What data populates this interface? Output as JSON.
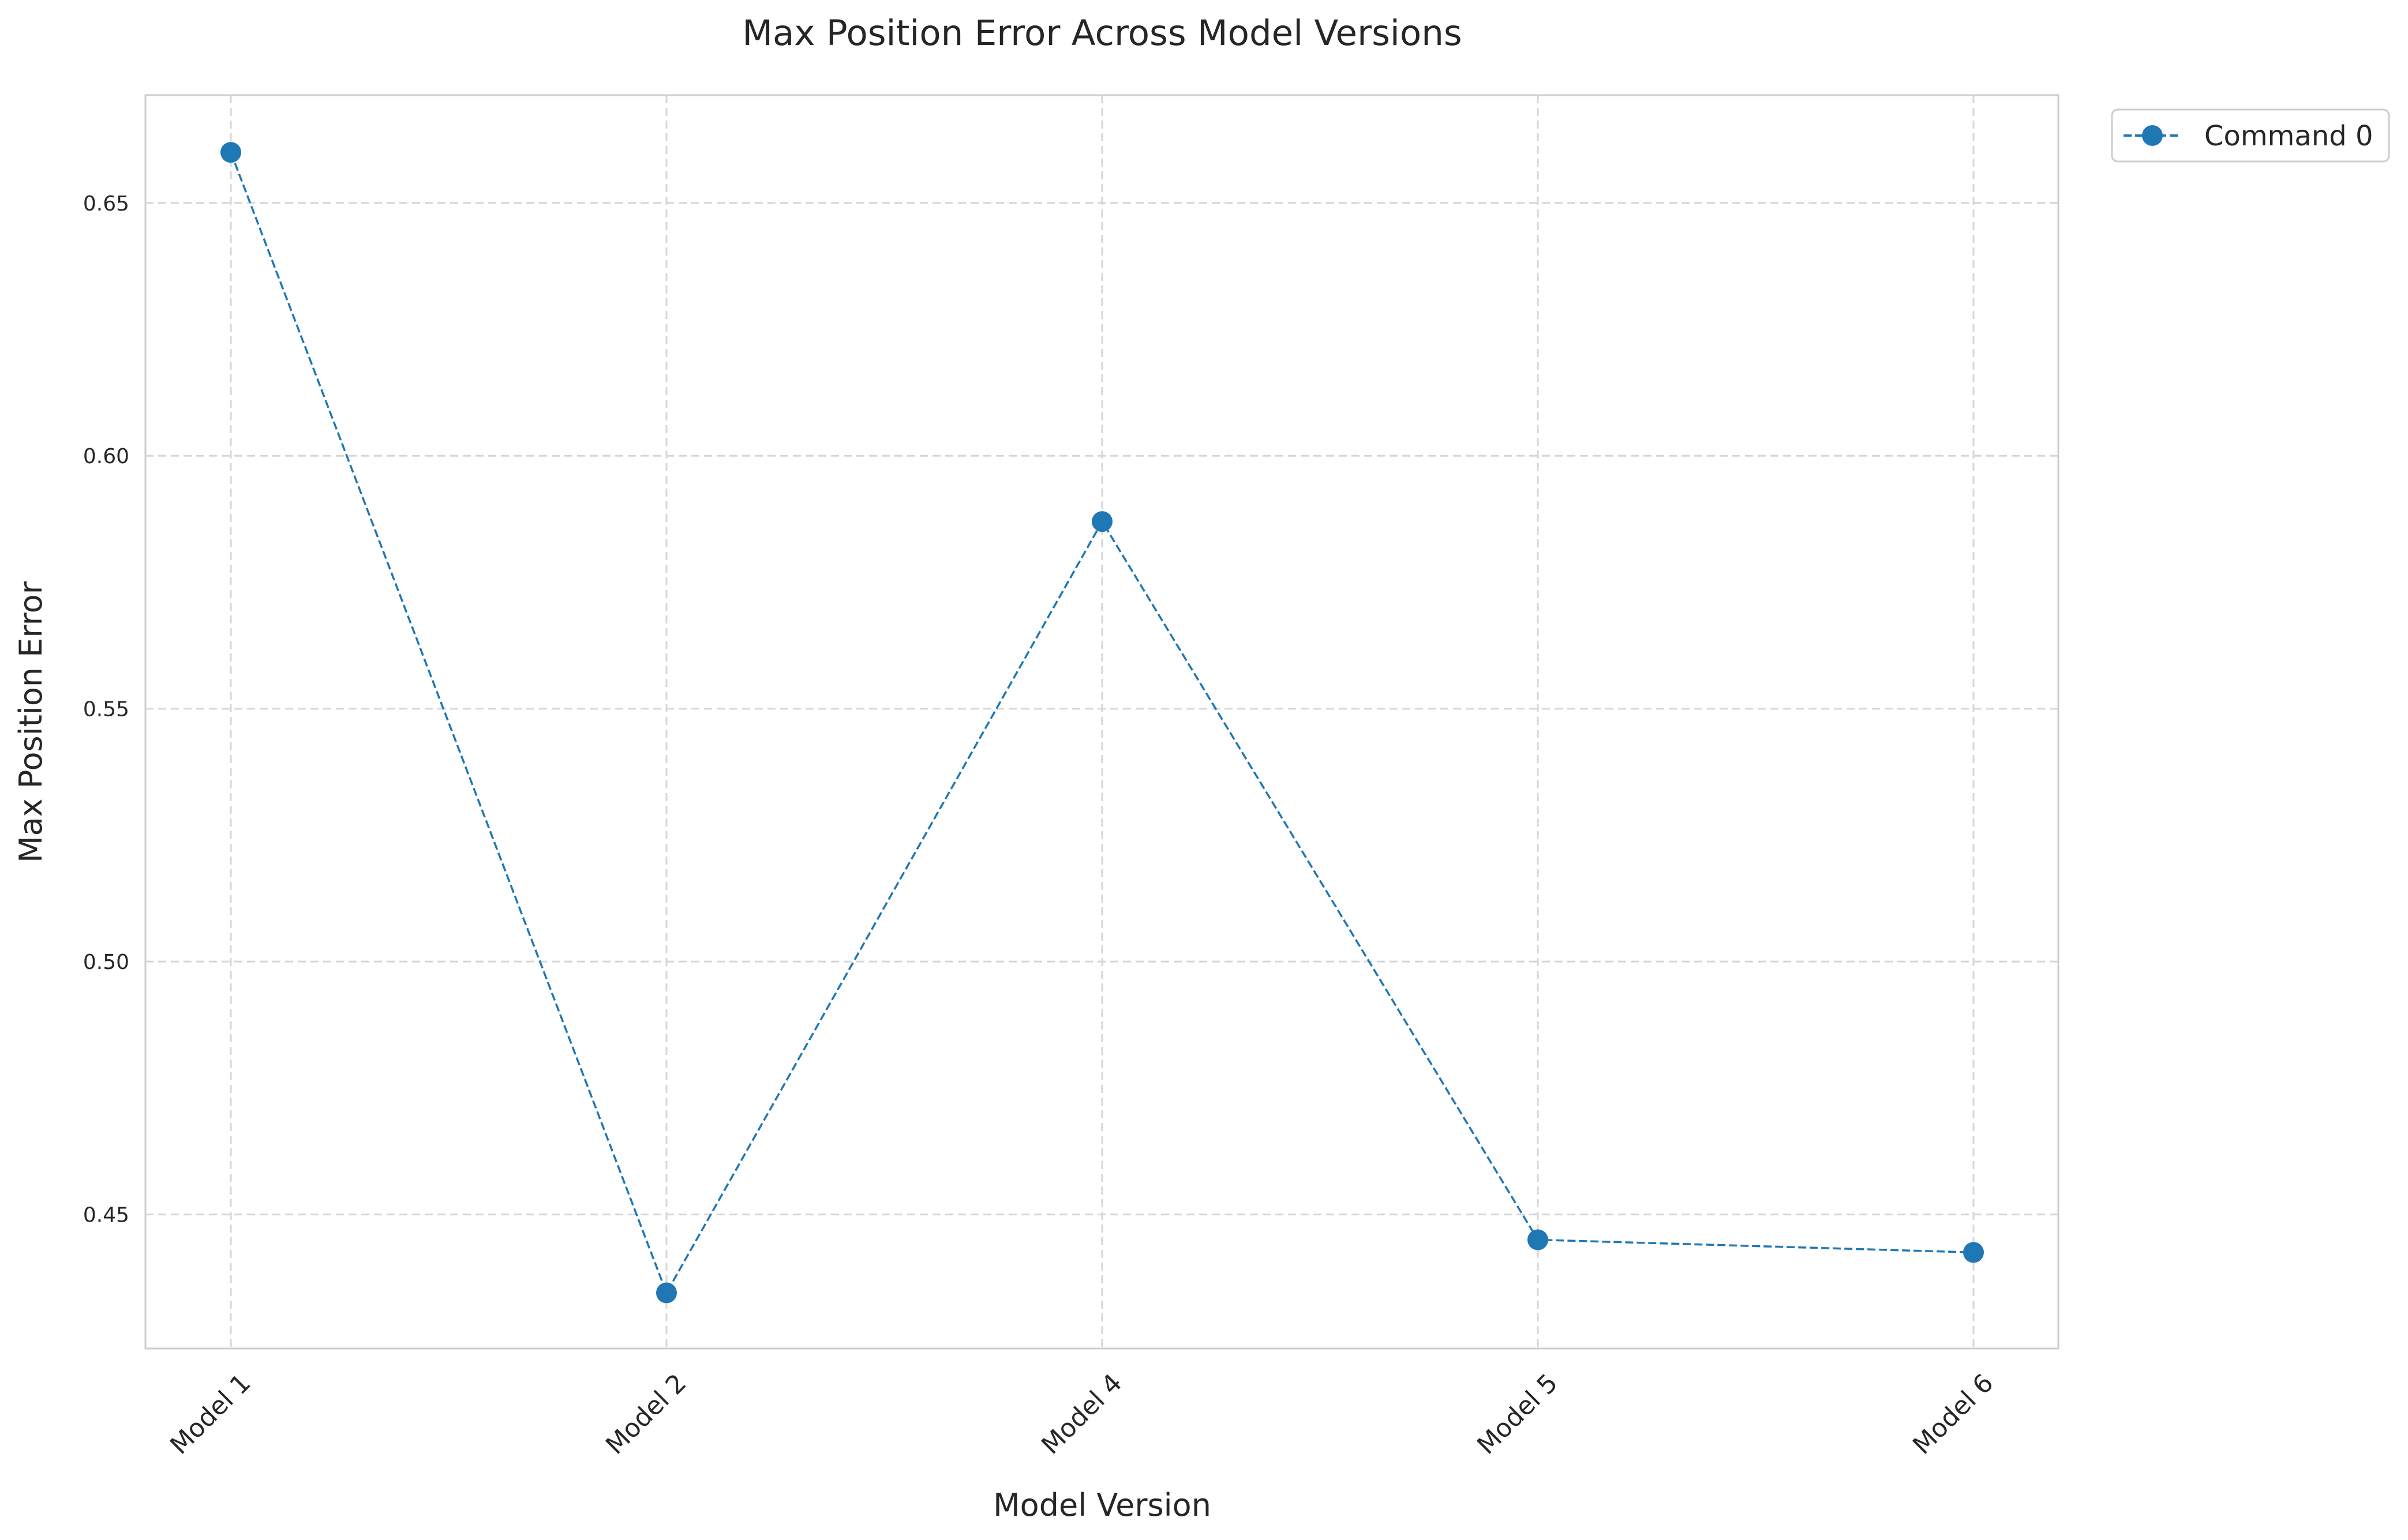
{
  "chart_data": {
    "type": "line",
    "title": "Max Position Error Across Model Versions",
    "xlabel": "Model Version",
    "ylabel": "Max Position Error",
    "categories": [
      "Model 1",
      "Model 2",
      "Model 4",
      "Model 5",
      "Model 6"
    ],
    "series": [
      {
        "name": "Command 0",
        "values": [
          0.66,
          0.4345,
          0.587,
          0.445,
          0.4425
        ],
        "color": "#1f77b4",
        "line_style": "dashed",
        "marker": "circle"
      }
    ],
    "yticks": [
      0.45,
      0.5,
      0.55,
      0.6,
      0.65
    ],
    "ytick_labels": [
      "0.45",
      "0.50",
      "0.55",
      "0.60",
      "0.65"
    ],
    "ylim": [
      0.4235,
      0.6713
    ],
    "grid": true,
    "grid_style": "dashed",
    "legend_position": "outside-top-right"
  }
}
